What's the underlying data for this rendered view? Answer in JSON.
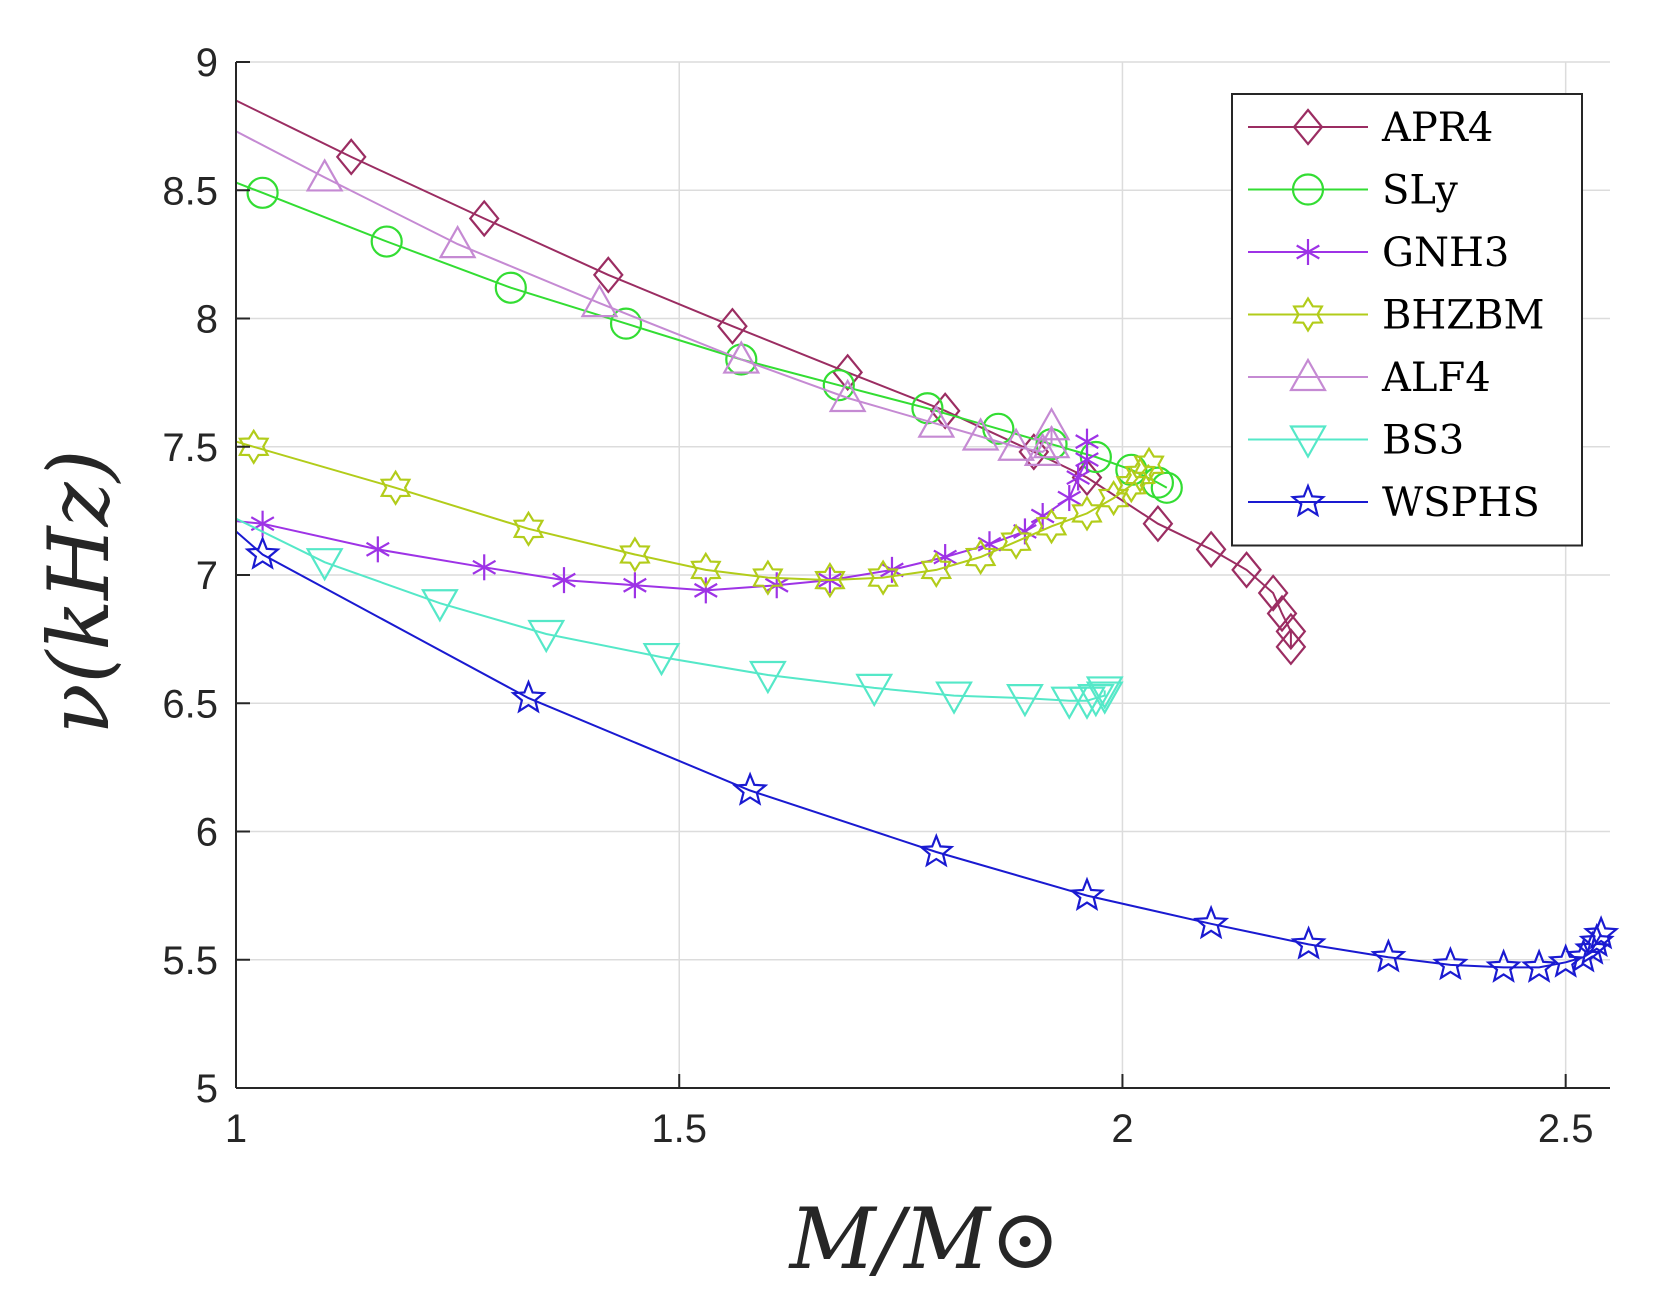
{
  "chart_data": {
    "type": "line",
    "title": "",
    "xlabel": "M/M⊙",
    "ylabel": "ν(kHz)",
    "xlim": [
      1,
      2.55
    ],
    "ylim": [
      5,
      9
    ],
    "xticks": [
      1,
      1.5,
      2,
      2.5
    ],
    "xtick_labels": [
      "1",
      "1.5",
      "2",
      "2.5"
    ],
    "yticks": [
      5,
      5.5,
      6,
      6.5,
      7,
      7.5,
      8,
      8.5,
      9
    ],
    "ytick_labels": [
      "5",
      "5.5",
      "6",
      "6.5",
      "7",
      "7.5",
      "8",
      "8.5",
      "9"
    ],
    "grid": true,
    "legend_position": "top-right",
    "series": [
      {
        "name": "APR4",
        "color": "#9b2d62",
        "marker": "diamond",
        "x": [
          1.0,
          1.13,
          1.28,
          1.42,
          1.56,
          1.69,
          1.8,
          1.9,
          1.96,
          2.04,
          2.1,
          2.14,
          2.17,
          2.18,
          2.19,
          2.19
        ],
        "y": [
          8.85,
          8.63,
          8.39,
          8.17,
          7.97,
          7.79,
          7.64,
          7.48,
          7.38,
          7.2,
          7.1,
          7.02,
          6.93,
          6.85,
          6.78,
          6.72
        ]
      },
      {
        "name": "SLy",
        "color": "#33dd33",
        "marker": "circle",
        "x": [
          1.0,
          1.03,
          1.17,
          1.31,
          1.44,
          1.57,
          1.68,
          1.78,
          1.86,
          1.92,
          1.97,
          2.01,
          2.04,
          2.05
        ],
        "y": [
          8.53,
          8.49,
          8.3,
          8.12,
          7.98,
          7.84,
          7.74,
          7.65,
          7.57,
          7.51,
          7.46,
          7.41,
          7.36,
          7.34
        ]
      },
      {
        "name": "GNH3",
        "color": "#9e33e6",
        "marker": "asterisk",
        "x": [
          1.0,
          1.03,
          1.16,
          1.28,
          1.37,
          1.45,
          1.53,
          1.61,
          1.67,
          1.74,
          1.8,
          1.85,
          1.89,
          1.91,
          1.94,
          1.95,
          1.96,
          1.96
        ],
        "y": [
          7.21,
          7.2,
          7.1,
          7.03,
          6.98,
          6.96,
          6.94,
          6.96,
          6.98,
          7.02,
          7.07,
          7.12,
          7.17,
          7.23,
          7.3,
          7.38,
          7.45,
          7.52
        ]
      },
      {
        "name": "BHZBM",
        "color": "#b2cc1a",
        "marker": "hexagram",
        "x": [
          1.0,
          1.02,
          1.18,
          1.33,
          1.45,
          1.53,
          1.6,
          1.67,
          1.73,
          1.79,
          1.84,
          1.88,
          1.92,
          1.96,
          1.99,
          2.01,
          2.02,
          2.03
        ],
        "y": [
          7.52,
          7.5,
          7.34,
          7.18,
          7.08,
          7.02,
          6.99,
          6.98,
          6.99,
          7.02,
          7.07,
          7.13,
          7.19,
          7.24,
          7.3,
          7.35,
          7.39,
          7.43
        ]
      },
      {
        "name": "ALF4",
        "color": "#c58ad3",
        "marker": "triangle-up",
        "x": [
          1.0,
          1.1,
          1.25,
          1.41,
          1.57,
          1.69,
          1.79,
          1.84,
          1.88,
          1.91,
          1.92,
          1.92
        ],
        "y": [
          8.73,
          8.55,
          8.29,
          8.06,
          7.84,
          7.69,
          7.59,
          7.54,
          7.5,
          7.48,
          7.51,
          7.58
        ]
      },
      {
        "name": "BS3",
        "color": "#55e8c8",
        "marker": "triangle-down",
        "x": [
          1.0,
          1.1,
          1.23,
          1.35,
          1.48,
          1.6,
          1.72,
          1.81,
          1.89,
          1.94,
          1.96,
          1.97,
          1.98,
          1.98
        ],
        "y": [
          7.22,
          7.05,
          6.89,
          6.77,
          6.68,
          6.61,
          6.56,
          6.53,
          6.52,
          6.51,
          6.51,
          6.52,
          6.53,
          6.55
        ]
      },
      {
        "name": "WSPHS",
        "color": "#1a1ad1",
        "marker": "pentagram",
        "x": [
          1.0,
          1.03,
          1.33,
          1.58,
          1.79,
          1.96,
          2.1,
          2.21,
          2.3,
          2.37,
          2.43,
          2.47,
          2.5,
          2.52,
          2.53,
          2.535,
          2.54
        ],
        "y": [
          7.17,
          7.08,
          6.52,
          6.16,
          5.92,
          5.75,
          5.64,
          5.56,
          5.51,
          5.48,
          5.47,
          5.47,
          5.49,
          5.51,
          5.54,
          5.57,
          5.6
        ]
      }
    ]
  }
}
